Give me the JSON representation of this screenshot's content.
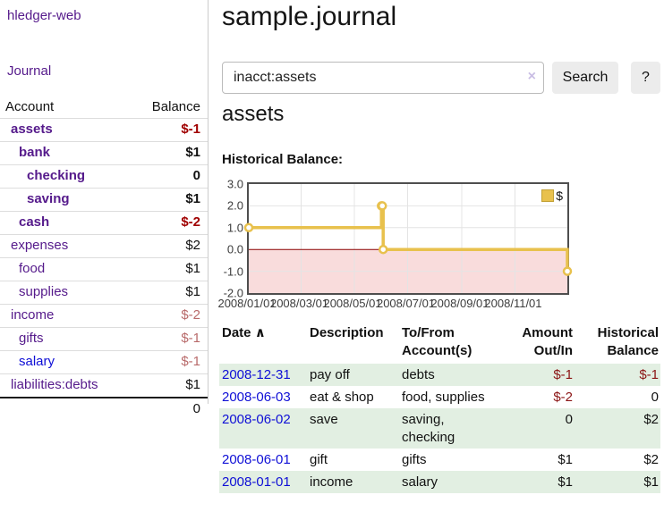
{
  "colors": {
    "link_purple": "#551a8b",
    "link_blue": "#0f0fd6",
    "negative": "#8b1515",
    "negative_strong": "#a00000",
    "negative_muted": "#b86a6a",
    "row_green": "#e2efe2",
    "chart_gold": "#e8c14d",
    "chart_negative_region": "#f9dcdc",
    "chart_zero_line": "#8b0000",
    "chart_grid": "#e4e4e4"
  },
  "app": {
    "title": "hledger-web"
  },
  "sidebar": {
    "nav": {
      "journal": "Journal"
    },
    "header": {
      "account": "Account",
      "balance": "Balance"
    },
    "accounts": [
      {
        "name": "assets",
        "balance": "$-1",
        "depth": 1,
        "bold": true,
        "link": "purple",
        "balance_tone": "neg-strong"
      },
      {
        "name": "bank",
        "balance": "$1",
        "depth": 2,
        "bold": true,
        "link": "purple",
        "balance_tone": "plain"
      },
      {
        "name": "checking",
        "balance": "0",
        "depth": 3,
        "bold": true,
        "link": "purple",
        "balance_tone": "plain"
      },
      {
        "name": "saving",
        "balance": "$1",
        "depth": 3,
        "bold": true,
        "link": "purple",
        "balance_tone": "plain"
      },
      {
        "name": "cash",
        "balance": "$-2",
        "depth": 2,
        "bold": true,
        "link": "purple",
        "balance_tone": "neg-strong"
      },
      {
        "name": "expenses",
        "balance": "$2",
        "depth": 1,
        "bold": false,
        "link": "purple",
        "balance_tone": "plain"
      },
      {
        "name": "food",
        "balance": "$1",
        "depth": 2,
        "bold": false,
        "link": "purple",
        "balance_tone": "plain"
      },
      {
        "name": "supplies",
        "balance": "$1",
        "depth": 2,
        "bold": false,
        "link": "purple",
        "balance_tone": "plain"
      },
      {
        "name": "income",
        "balance": "$-2",
        "depth": 1,
        "bold": false,
        "link": "purple",
        "balance_tone": "neg-muted"
      },
      {
        "name": "gifts",
        "balance": "$-1",
        "depth": 2,
        "bold": false,
        "link": "purple",
        "balance_tone": "neg-muted"
      },
      {
        "name": "salary",
        "balance": "$-1",
        "depth": 2,
        "bold": false,
        "link": "blue",
        "balance_tone": "neg-muted"
      },
      {
        "name": "liabilities:debts",
        "balance": "$1",
        "depth": 1,
        "bold": false,
        "link": "purple",
        "balance_tone": "plain"
      }
    ],
    "total": "0"
  },
  "main": {
    "title": "sample.journal",
    "search": {
      "value": "inacct:assets",
      "clear_icon": "×",
      "button": "Search",
      "help": "?"
    },
    "account_heading": "assets",
    "chart_label": "Historical Balance:"
  },
  "chart_data": {
    "type": "line",
    "title": "Historical Balance",
    "step": true,
    "series": [
      {
        "name": "$",
        "points": [
          [
            "2008/01/01",
            1
          ],
          [
            "2008/06/01",
            2
          ],
          [
            "2008/06/02",
            2
          ],
          [
            "2008/06/03",
            0
          ],
          [
            "2008/12/31",
            -1
          ]
        ]
      }
    ],
    "x_range": [
      "2008/01/01",
      "2008/12/31"
    ],
    "ylim": [
      -2,
      3
    ],
    "y_ticks": [
      "3.0",
      "2.0",
      "1.0",
      "0.0",
      "-1.0",
      "-2.0"
    ],
    "x_ticks": [
      "2008/01/01",
      "2008/03/01",
      "2008/05/01",
      "2008/07/01",
      "2008/09/01",
      "2008/11/01"
    ],
    "legend": {
      "label": "$",
      "position": "top-right"
    },
    "grid": true,
    "negative_region_shaded": true
  },
  "register": {
    "headers": {
      "date": "Date",
      "sort_icon": "∧",
      "description": "Description",
      "accounts_l1": "To/From",
      "accounts_l2": "Account(s)",
      "amount_l1": "Amount",
      "amount_l2": "Out/In",
      "balance_l1": "Historical",
      "balance_l2": "Balance"
    },
    "rows": [
      {
        "date": "2008-12-31",
        "description": "pay off",
        "accounts": "debts",
        "amount": "$-1",
        "balance": "$-1"
      },
      {
        "date": "2008-06-03",
        "description": "eat & shop",
        "accounts": "food, supplies",
        "amount": "$-2",
        "balance": "0"
      },
      {
        "date": "2008-06-02",
        "description": "save",
        "accounts": "saving, checking",
        "amount": "0",
        "balance": "$2"
      },
      {
        "date": "2008-06-01",
        "description": "gift",
        "accounts": "gifts",
        "amount": "$1",
        "balance": "$2"
      },
      {
        "date": "2008-01-01",
        "description": "income",
        "accounts": "salary",
        "amount": "$1",
        "balance": "$1"
      }
    ]
  }
}
